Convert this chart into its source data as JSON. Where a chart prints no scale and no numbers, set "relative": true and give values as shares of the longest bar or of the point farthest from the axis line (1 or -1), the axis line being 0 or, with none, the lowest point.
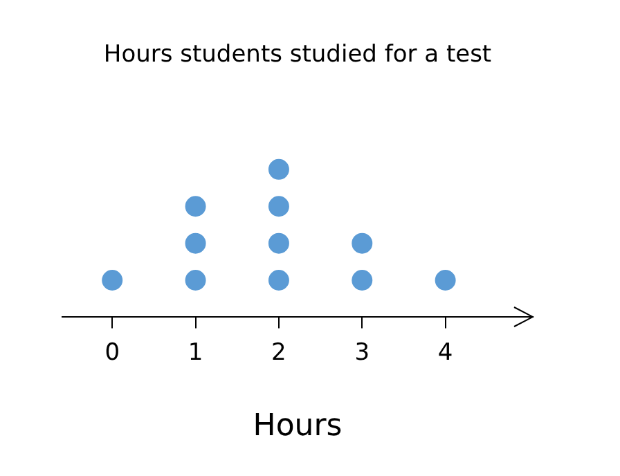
{
  "chart_data": {
    "type": "scatter",
    "title": "Hours students studied for a test",
    "xlabel": "Hours",
    "relative": true,
    "x": [
      0,
      1,
      1,
      1,
      2,
      2,
      2,
      2,
      3,
      3,
      4
    ],
    "values": [
      0.25,
      0.25,
      0.5,
      0.75,
      0.25,
      0.5,
      0.75,
      1,
      0.25,
      0.5,
      0.25
    ],
    "color": "#5b9bd5",
    "marker": "circle",
    "xlim": [
      -0.6,
      5.05
    ],
    "xticks": [
      0,
      1,
      2,
      3,
      4
    ]
  }
}
